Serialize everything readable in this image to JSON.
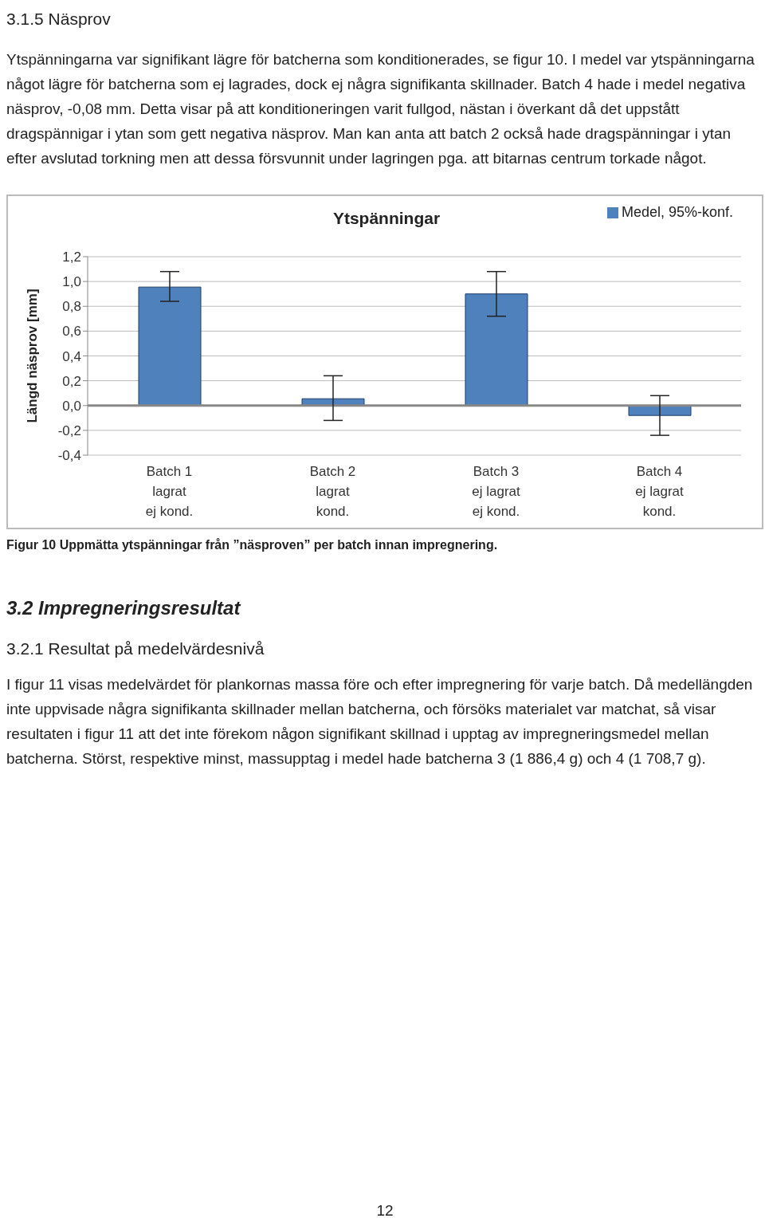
{
  "chart_data": {
    "type": "bar",
    "title": "Ytspänningar",
    "ylabel": "Längd näsprov [mm]",
    "categories": [
      "Batch 1\nlagrat\nej kond.",
      "Batch 2\nlagrat\nkond.",
      "Batch 3\nej lagrat\nej kond.",
      "Batch 4\nej lagrat\nkond."
    ],
    "series": [
      {
        "name": "Medel, 95%-konf.",
        "color": "#4f81bd",
        "values": [
          0.955,
          0.055,
          0.9,
          -0.08
        ],
        "errors": [
          [
            0.84,
            1.08
          ],
          [
            -0.12,
            0.24
          ],
          [
            0.72,
            1.08
          ],
          [
            -0.24,
            0.08
          ]
        ]
      }
    ],
    "ylim": [
      -0.4,
      1.2
    ],
    "yticks": [
      {
        "value": -0.4,
        "label": "-0,4"
      },
      {
        "value": -0.2,
        "label": "-0,2"
      },
      {
        "value": 0,
        "label": "0,0"
      },
      {
        "value": 0.2,
        "label": "0,2"
      },
      {
        "value": 0.4,
        "label": "0,4"
      },
      {
        "value": 0.6,
        "label": "0,6"
      },
      {
        "value": 0.8,
        "label": "0,8"
      },
      {
        "value": 1.0,
        "label": "1,0"
      },
      {
        "value": 1.2,
        "label": "1,2"
      }
    ],
    "grid": "y",
    "legend": "top right",
    "annotations": [
      "3.1.5   Näsprov",
      "Ytspänningarna var signifikant lägre för batcherna som konditionerades, se figur 10. I medel var ytspänningarna något lägre för batcherna som ej lagrades, dock ej några signifikanta skillnader. Batch 4 hade i medel negativa näsprov, -0,08 mm. Detta visar på att konditioneringen varit fullgod, nästan i överkant då det uppstått dragspännigar i ytan som gett negativa näsprov. Man kan anta att batch 2 också hade dragspänningar i ytan efter avslutad torkning men att dessa försvunnit under lagringen pga. att bitarnas centrum torkade något.",
      "Figur 10 Uppmätta ytspänningar från ”näsproven” per batch innan impregnering.",
      "3.2  Impregneringsresultat",
      "3.2.1   Resultat på medelvärdesnivå",
      "I figur 11 visas medelvärdet för plankornas massa före och efter impregnering för varje batch. Då medellängden inte uppvisade några signifikanta skillnader mellan batcherna, och försöks materialet var matchat, så visar resultaten i figur 11 att det inte förekom någon signifikant skillnad i upptag av impregneringsmedel mellan batcherna. Störst, respektive minst, massupptag i medel hade batcherna 3 (1 886,4 g) och 4 (1 708,7 g).",
      "12"
    ]
  }
}
